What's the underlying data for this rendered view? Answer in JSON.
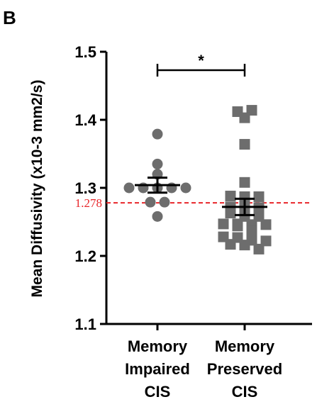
{
  "panel_label": "B",
  "colors": {
    "axis": "#000000",
    "points": "#6d6d6d",
    "reference": "#e8262a"
  },
  "chart_data": {
    "type": "scatter",
    "title": "",
    "ylabel": "Mean Diffusivity (x10-3 mm2/s)",
    "ylim": [
      1.1,
      1.5
    ],
    "yticks": [
      1.1,
      1.2,
      1.3,
      1.4,
      1.5
    ],
    "ytick_labels": [
      "1.1",
      "1.2",
      "1.3",
      "1.4",
      "1.5"
    ],
    "categories": [
      {
        "lines": [
          "Memory",
          "Impaired",
          "CIS"
        ]
      },
      {
        "lines": [
          "Memory",
          "Preserved",
          "CIS"
        ]
      }
    ],
    "series": [
      {
        "marker": "circle",
        "values": [
          1.379,
          1.335,
          1.32,
          1.3,
          1.3,
          1.3,
          1.3,
          1.3,
          1.279,
          1.279,
          1.258
        ],
        "mean": 1.304,
        "sem": 0.011
      },
      {
        "marker": "square",
        "values": [
          1.412,
          1.403,
          1.414,
          1.364,
          1.308,
          1.288,
          1.287,
          1.287,
          1.272,
          1.272,
          1.271,
          1.263,
          1.258,
          1.258,
          1.247,
          1.247,
          1.246,
          1.246,
          1.244,
          1.236,
          1.228,
          1.227,
          1.223,
          1.222,
          1.217,
          1.216,
          1.21
        ],
        "mean": 1.272,
        "sem": 0.012
      }
    ],
    "reference_line": {
      "value": 1.278,
      "label": "1.278",
      "style": "dashed"
    },
    "significance": {
      "label": "*",
      "between": [
        0,
        1
      ]
    }
  }
}
